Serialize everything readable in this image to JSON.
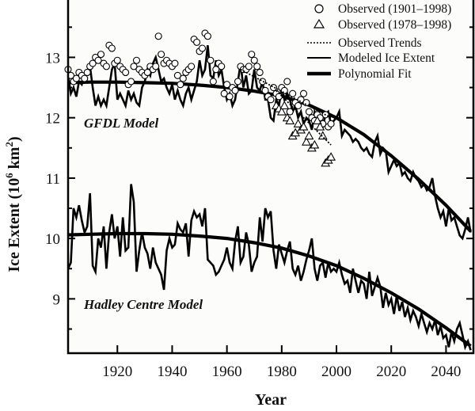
{
  "chart_data": {
    "type": "line",
    "title": "",
    "xlabel": "Year",
    "ylabel": "Ice Extent (10^6 km^2)",
    "ylabel_parts": {
      "main": "Ice Extent (10",
      "sup1": "6",
      "mid": " km",
      "sup2": "2",
      "end": ")"
    },
    "xlim": [
      1902,
      2050
    ],
    "ylim": [
      8.1,
      13.95
    ],
    "xticks": [
      1920,
      1940,
      1960,
      1980,
      2000,
      2020,
      2040
    ],
    "xtick_labels": [
      "1920",
      "1940",
      "1960",
      "1980",
      "2000",
      "2020",
      "2040"
    ],
    "yticks": [
      9,
      10,
      11,
      12,
      13
    ],
    "ytick_labels": [
      "9",
      "10",
      "11",
      "12",
      "13"
    ],
    "grid": false,
    "legend_position": "top-right",
    "legend": [
      {
        "key": "circles",
        "label": "Observed (1901–1998)"
      },
      {
        "key": "triangles",
        "label": "Observed (1978–1998)"
      },
      {
        "key": "trends",
        "label": "Observed Trends"
      },
      {
        "key": "modeled",
        "label": "Modeled Ice Extent"
      },
      {
        "key": "fit",
        "label": "Polynomial Fit"
      }
    ],
    "annotations": [
      {
        "text": "GFDL Model",
        "x": 1908,
        "y": 11.85
      },
      {
        "text": "Hadley Centre Model",
        "x": 1908,
        "y": 8.85
      }
    ],
    "series": [
      {
        "name": "GFDL Modeled Ice Extent",
        "style": "modeled",
        "x": [
          1902,
          1903,
          1904,
          1905,
          1906,
          1907,
          1908,
          1909,
          1910,
          1911,
          1912,
          1913,
          1914,
          1915,
          1916,
          1917,
          1918,
          1919,
          1920,
          1921,
          1922,
          1923,
          1924,
          1925,
          1926,
          1927,
          1928,
          1929,
          1930,
          1931,
          1932,
          1933,
          1934,
          1935,
          1936,
          1937,
          1938,
          1939,
          1940,
          1941,
          1942,
          1943,
          1944,
          1945,
          1946,
          1947,
          1948,
          1949,
          1950,
          1951,
          1952,
          1953,
          1954,
          1955,
          1956,
          1957,
          1958,
          1959,
          1960,
          1961,
          1962,
          1963,
          1964,
          1965,
          1966,
          1967,
          1968,
          1969,
          1970,
          1971,
          1972,
          1973,
          1974,
          1975,
          1976,
          1977,
          1978,
          1979,
          1980,
          1981,
          1982,
          1983,
          1984,
          1985,
          1986,
          1987,
          1988,
          1989,
          1990,
          1991,
          1992,
          1993,
          1994,
          1995,
          1996,
          1997,
          1998,
          1999,
          2000,
          2001,
          2002,
          2003,
          2004,
          2005,
          2006,
          2007,
          2008,
          2009,
          2010,
          2011,
          2012,
          2013,
          2014,
          2015,
          2016,
          2017,
          2018,
          2019,
          2020,
          2021,
          2022,
          2023,
          2024,
          2025,
          2026,
          2027,
          2028,
          2029,
          2030,
          2031,
          2032,
          2033,
          2034,
          2035,
          2036,
          2037,
          2038,
          2039,
          2040,
          2041,
          2042,
          2043,
          2044,
          2045,
          2046,
          2047,
          2048,
          2049
        ],
        "y": [
          12.7,
          12.4,
          12.5,
          12.35,
          12.6,
          12.55,
          12.7,
          12.75,
          12.85,
          12.5,
          12.2,
          12.35,
          12.2,
          12.3,
          12.2,
          12.5,
          12.8,
          12.9,
          12.3,
          12.4,
          12.3,
          12.2,
          12.45,
          12.3,
          12.4,
          12.25,
          12.2,
          12.5,
          12.6,
          12.8,
          12.7,
          12.9,
          13.0,
          12.8,
          12.6,
          12.65,
          12.5,
          12.4,
          12.55,
          12.3,
          12.45,
          12.3,
          12.2,
          12.4,
          12.5,
          12.3,
          12.45,
          12.6,
          12.95,
          12.7,
          12.8,
          13.2,
          12.7,
          12.65,
          12.95,
          12.7,
          12.8,
          12.5,
          12.3,
          12.4,
          12.2,
          12.3,
          12.6,
          12.9,
          12.5,
          12.7,
          12.4,
          12.45,
          12.8,
          12.5,
          12.45,
          12.6,
          12.3,
          12.3,
          12.0,
          11.95,
          12.3,
          12.2,
          12.5,
          12.3,
          12.4,
          12.3,
          12.1,
          12.2,
          12.0,
          12.1,
          11.9,
          12.0,
          11.95,
          11.8,
          12.1,
          12.0,
          11.9,
          11.85,
          12.05,
          12.1,
          11.9,
          11.95,
          12.0,
          12.1,
          11.7,
          11.8,
          11.75,
          11.7,
          11.6,
          11.65,
          11.6,
          11.5,
          11.45,
          11.5,
          11.4,
          11.35,
          11.6,
          11.7,
          11.4,
          11.5,
          11.45,
          11.1,
          11.2,
          11.3,
          11.2,
          11.25,
          11.05,
          11.1,
          11.0,
          10.95,
          11.1,
          11.0,
          10.95,
          10.85,
          10.9,
          10.8,
          10.85,
          11.0,
          10.7,
          10.5,
          10.35,
          10.45,
          10.2,
          10.5,
          10.3,
          10.35,
          10.2,
          10.05,
          10.0,
          10.15,
          10.35,
          10.1
        ]
      },
      {
        "name": "GFDL Polynomial Fit",
        "style": "fit",
        "x": [
          1902,
          1910,
          1920,
          1930,
          1940,
          1950,
          1960,
          1970,
          1980,
          1990,
          2000,
          2010,
          2020,
          2030,
          2040,
          2049
        ],
        "y": [
          12.58,
          12.59,
          12.59,
          12.58,
          12.57,
          12.54,
          12.5,
          12.44,
          12.36,
          12.21,
          12.0,
          11.72,
          11.37,
          10.98,
          10.55,
          10.12
        ]
      },
      {
        "name": "Hadley Modeled Ice Extent",
        "style": "modeled",
        "x": [
          1902,
          1903,
          1904,
          1905,
          1906,
          1907,
          1908,
          1909,
          1910,
          1911,
          1912,
          1913,
          1914,
          1915,
          1916,
          1917,
          1918,
          1919,
          1920,
          1921,
          1922,
          1923,
          1924,
          1925,
          1926,
          1927,
          1928,
          1929,
          1930,
          1931,
          1932,
          1933,
          1934,
          1935,
          1936,
          1937,
          1938,
          1939,
          1940,
          1941,
          1942,
          1943,
          1944,
          1945,
          1946,
          1947,
          1948,
          1949,
          1950,
          1951,
          1952,
          1953,
          1954,
          1955,
          1956,
          1957,
          1958,
          1959,
          1960,
          1961,
          1962,
          1963,
          1964,
          1965,
          1966,
          1967,
          1968,
          1969,
          1970,
          1971,
          1972,
          1973,
          1974,
          1975,
          1976,
          1977,
          1978,
          1979,
          1980,
          1981,
          1982,
          1983,
          1984,
          1985,
          1986,
          1987,
          1988,
          1989,
          1990,
          1991,
          1992,
          1993,
          1994,
          1995,
          1996,
          1997,
          1998,
          1999,
          2000,
          2001,
          2002,
          2003,
          2004,
          2005,
          2006,
          2007,
          2008,
          2009,
          2010,
          2011,
          2012,
          2013,
          2014,
          2015,
          2016,
          2017,
          2018,
          2019,
          2020,
          2021,
          2022,
          2023,
          2024,
          2025,
          2026,
          2027,
          2028,
          2029,
          2030,
          2031,
          2032,
          2033,
          2034,
          2035,
          2036,
          2037,
          2038,
          2039,
          2040,
          2041,
          2042,
          2043,
          2044,
          2045,
          2046,
          2047,
          2048,
          2049
        ],
        "y": [
          9.5,
          9.6,
          10.5,
          10.35,
          10.55,
          10.3,
          10.1,
          10.2,
          10.75,
          9.55,
          9.45,
          10.0,
          9.85,
          10.2,
          9.5,
          10.1,
          10.4,
          10.0,
          10.2,
          9.7,
          10.35,
          9.8,
          9.85,
          10.9,
          10.6,
          9.45,
          9.8,
          10.1,
          9.85,
          9.75,
          9.5,
          9.85,
          9.6,
          9.5,
          9.4,
          9.15,
          9.8,
          10.0,
          9.85,
          9.9,
          10.25,
          10.15,
          10.1,
          10.25,
          9.7,
          10.3,
          10.45,
          10.35,
          10.4,
          10.2,
          10.5,
          9.65,
          9.6,
          9.55,
          9.4,
          9.45,
          9.55,
          9.65,
          9.85,
          9.6,
          9.5,
          9.95,
          10.2,
          9.6,
          9.7,
          10.1,
          9.9,
          9.45,
          9.6,
          9.7,
          10.35,
          9.95,
          10.5,
          10.35,
          10.45,
          9.8,
          9.5,
          9.9,
          9.75,
          9.6,
          9.8,
          9.95,
          9.5,
          9.4,
          9.55,
          9.3,
          9.45,
          9.65,
          9.8,
          10.0,
          9.5,
          9.3,
          9.55,
          9.6,
          9.35,
          9.6,
          9.45,
          9.5,
          9.45,
          9.6,
          9.4,
          9.25,
          9.3,
          9.1,
          9.5,
          9.3,
          9.1,
          9.3,
          9.25,
          9.0,
          9.45,
          9.05,
          9.2,
          9.35,
          9.2,
          8.85,
          9.1,
          8.9,
          9.0,
          8.75,
          9.05,
          8.8,
          8.95,
          8.7,
          8.85,
          8.65,
          8.8,
          8.7,
          8.55,
          8.75,
          8.6,
          8.45,
          8.6,
          8.5,
          8.65,
          8.4,
          8.55,
          8.35,
          8.4,
          8.2,
          8.45,
          8.3,
          8.5,
          8.6,
          8.4,
          8.2,
          8.3,
          8.15
        ]
      },
      {
        "name": "Hadley Polynomial Fit",
        "style": "fit",
        "x": [
          1902,
          1910,
          1920,
          1930,
          1940,
          1950,
          1960,
          1970,
          1980,
          1990,
          2000,
          2010,
          2020,
          2030,
          2040,
          2049
        ],
        "y": [
          10.06,
          10.07,
          10.08,
          10.08,
          10.07,
          10.04,
          10.0,
          9.93,
          9.84,
          9.71,
          9.55,
          9.34,
          9.1,
          8.83,
          8.52,
          8.22
        ]
      },
      {
        "name": "Observed (1901–1998)",
        "style": "circles",
        "x": [
          1902,
          1903,
          1904,
          1905,
          1906,
          1907,
          1908,
          1909,
          1910,
          1911,
          1912,
          1913,
          1914,
          1915,
          1916,
          1917,
          1918,
          1919,
          1920,
          1921,
          1922,
          1923,
          1924,
          1925,
          1926,
          1927,
          1928,
          1929,
          1930,
          1931,
          1932,
          1933,
          1934,
          1935,
          1936,
          1937,
          1938,
          1939,
          1940,
          1941,
          1942,
          1943,
          1944,
          1945,
          1946,
          1947,
          1948,
          1949,
          1950,
          1951,
          1952,
          1953,
          1954,
          1955,
          1956,
          1957,
          1958,
          1959,
          1960,
          1961,
          1962,
          1963,
          1964,
          1965,
          1966,
          1967,
          1968,
          1969,
          1970,
          1971,
          1972,
          1973,
          1974,
          1975,
          1976,
          1977,
          1978,
          1979,
          1980,
          1981,
          1982,
          1983,
          1984,
          1985,
          1986,
          1987,
          1988,
          1989,
          1990,
          1991,
          1992,
          1993,
          1994,
          1995,
          1996,
          1997,
          1998
        ],
        "y": [
          12.8,
          12.7,
          12.6,
          12.65,
          12.75,
          12.7,
          12.65,
          12.75,
          12.85,
          12.9,
          13.0,
          12.95,
          13.05,
          12.9,
          12.85,
          13.2,
          13.15,
          12.9,
          12.95,
          12.85,
          12.8,
          12.75,
          12.55,
          12.6,
          12.85,
          12.95,
          12.8,
          12.75,
          12.7,
          12.75,
          12.85,
          12.8,
          12.85,
          13.35,
          13.05,
          12.9,
          12.95,
          12.9,
          12.85,
          12.9,
          12.7,
          12.55,
          12.65,
          12.75,
          12.8,
          12.85,
          13.3,
          13.25,
          13.1,
          13.15,
          13.4,
          13.35,
          12.95,
          12.6,
          12.8,
          12.9,
          12.85,
          12.4,
          12.55,
          12.35,
          12.5,
          12.45,
          12.6,
          12.85,
          12.8,
          12.8,
          12.85,
          13.05,
          12.95,
          12.85,
          12.75,
          12.6,
          12.45,
          12.35,
          12.3,
          12.5,
          12.4,
          12.35,
          12.5,
          12.45,
          12.6,
          12.1,
          12.4,
          12.25,
          12.2,
          12.3,
          12.4,
          12.25,
          12.1,
          12.0,
          11.95,
          12.05,
          12.0,
          11.9,
          12.05,
          11.85,
          11.9
        ]
      },
      {
        "name": "Observed (1978–1998)",
        "style": "triangles",
        "x": [
          1978,
          1979,
          1980,
          1981,
          1982,
          1983,
          1984,
          1985,
          1986,
          1987,
          1988,
          1989,
          1990,
          1991,
          1992,
          1993,
          1994,
          1995,
          1996,
          1997,
          1998
        ],
        "y": [
          12.2,
          12.15,
          12.1,
          12.2,
          12.0,
          11.95,
          11.7,
          11.75,
          11.9,
          11.8,
          11.85,
          11.6,
          11.7,
          11.5,
          11.55,
          11.95,
          11.85,
          11.7,
          11.25,
          11.3,
          11.35
        ]
      },
      {
        "name": "Observed Trend (1901–1998)",
        "style": "trends",
        "x": [
          1965,
          1998
        ],
        "y": [
          12.8,
          12.0
        ]
      },
      {
        "name": "Observed Trend (1978–1998)",
        "style": "trends",
        "x": [
          1978,
          1998
        ],
        "y": [
          12.45,
          11.55
        ]
      }
    ]
  }
}
